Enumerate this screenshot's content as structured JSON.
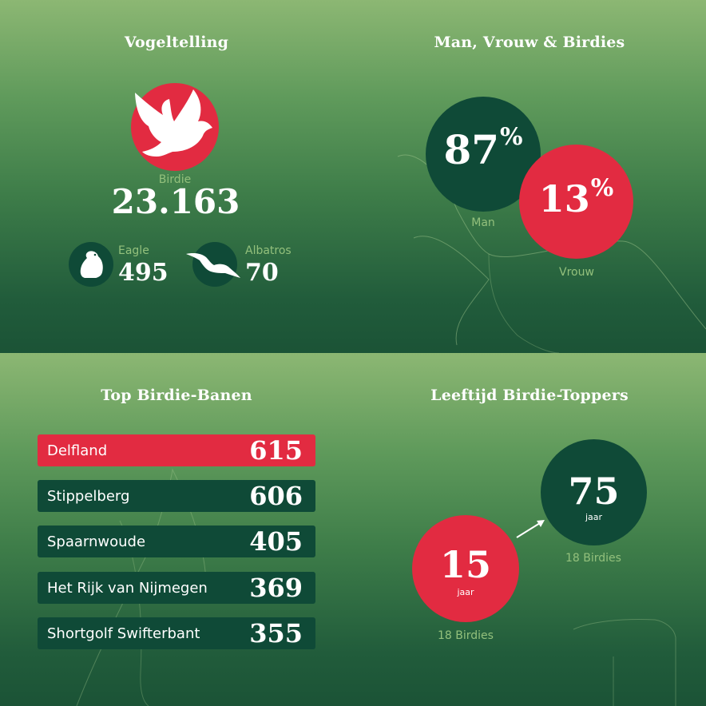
{
  "chart_data": [
    {
      "type": "table",
      "title": "Vogeltelling",
      "items": [
        {
          "name": "Birdie",
          "value": "23.163",
          "icon": "dove-icon"
        },
        {
          "name": "Eagle",
          "value": "495",
          "icon": "eagle-icon"
        },
        {
          "name": "Albatros",
          "value": "70",
          "icon": "albatross-icon"
        }
      ]
    },
    {
      "type": "pie",
      "title": "Man, Vrouw & Birdies",
      "series": [
        {
          "name": "Man",
          "value": 87
        },
        {
          "name": "Vrouw",
          "value": 13
        }
      ],
      "unit": "%"
    },
    {
      "type": "bar",
      "title": "Top Birdie-Banen",
      "categories": [
        "Delfland",
        "Stippelberg",
        "Spaarnwoude",
        "Het Rijk van Nijmegen",
        "Shortgolf Swifterbant"
      ],
      "values": [
        615,
        606,
        405,
        369,
        355
      ]
    },
    {
      "type": "scatter",
      "title": "Leeftijd Birdie-Toppers",
      "points": [
        {
          "age": "15",
          "unit": "jaar",
          "birdies": "18 Birdies"
        },
        {
          "age": "75",
          "unit": "jaar",
          "birdies": "18 Birdies"
        }
      ]
    }
  ],
  "colors": {
    "red": "#e22b41",
    "dark_green": "#0f4a37",
    "label_green": "#93c07c"
  }
}
